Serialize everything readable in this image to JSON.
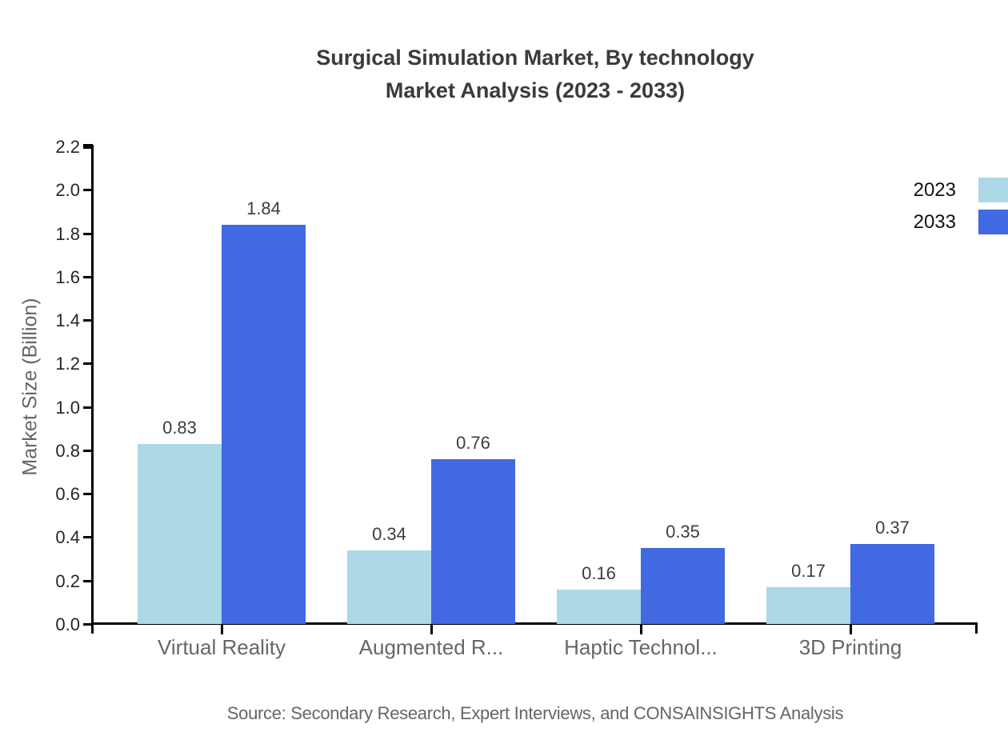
{
  "title": {
    "line1": "Surgical Simulation Market, By technology",
    "line2": "Market Analysis (2023 - 2033)"
  },
  "source": "Source: Secondary Research, Expert Interviews, and CONSAINSIGHTS Analysis",
  "chart_data": {
    "type": "bar",
    "title": "Surgical Simulation Market, By technology Market Analysis (2023 - 2033)",
    "ylabel": "Market Size (Billion)",
    "xlabel": "",
    "categories": [
      "Virtual Reality",
      "Augmented R...",
      "Haptic Technol...",
      "3D Printing"
    ],
    "series": [
      {
        "name": "2023",
        "color": "#ADD8E6",
        "values": [
          0.83,
          0.34,
          0.16,
          0.17
        ]
      },
      {
        "name": "2033",
        "color": "#4169E1",
        "values": [
          1.84,
          0.76,
          0.35,
          0.37
        ]
      }
    ],
    "ylim": [
      0.0,
      2.2
    ],
    "ytick_step": 0.2,
    "grid": false,
    "legend_position": "top-right",
    "value_labels": true,
    "value_label_decimals": 2
  }
}
